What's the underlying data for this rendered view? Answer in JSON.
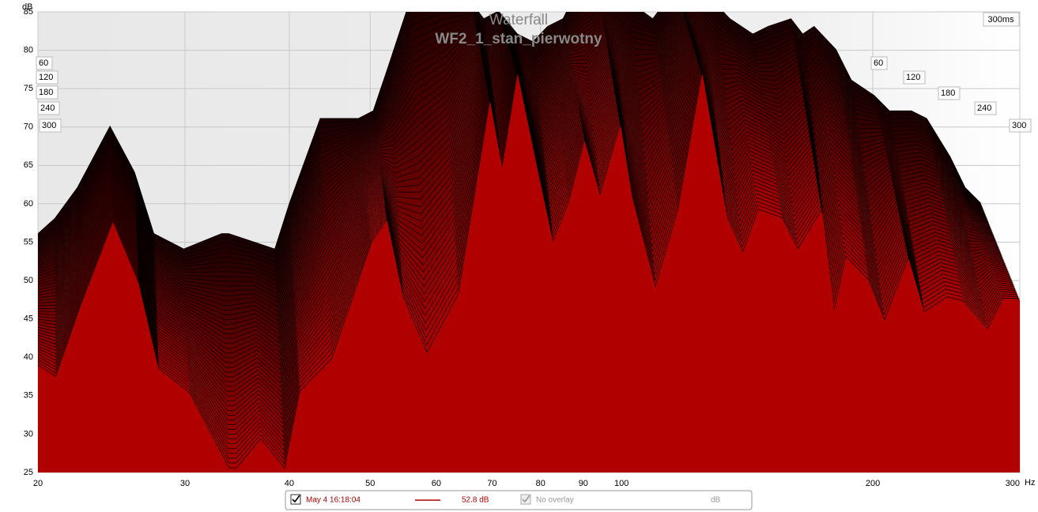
{
  "chart_data": {
    "type": "waterfall",
    "title": "Waterfall",
    "subtitle": "WF2_1_stan_pierwotny",
    "x": [
      20,
      21.0,
      22.4,
      24.6,
      26.4,
      27.9,
      30.4,
      33.9,
      34.6,
      37.0,
      39.5,
      41.2,
      45.0,
      50.2,
      52.4,
      54.8,
      58.5,
      63.8,
      69.6,
      72.0,
      75.1,
      79.3,
      82.9,
      86.5,
      90.4,
      94.4,
      99.8,
      103,
      110,
      117,
      125,
      134,
      140,
      146,
      156,
      163,
      174,
      180,
      186,
      198,
      207,
      221,
      231,
      246,
      257,
      275,
      287,
      300
    ],
    "series": [
      {
        "color": "#1a0000",
        "values": [
          52,
          54,
          58,
          66,
          60,
          52,
          50,
          52,
          52,
          51,
          50,
          56,
          67,
          67,
          68,
          74,
          83,
          84,
          82,
          80,
          81,
          78,
          77,
          79,
          80,
          84,
          84,
          84,
          82,
          80,
          84,
          84,
          82,
          80,
          78,
          79,
          80,
          78,
          79,
          76,
          72,
          70,
          68,
          68,
          67,
          62,
          58,
          56
        ]
      },
      {
        "color": "#b00000",
        "values": [
          38.7,
          37.1,
          45.9,
          57.5,
          49.5,
          38.2,
          35,
          25,
          25,
          28.9,
          25,
          35.1,
          39.2,
          54.6,
          57.7,
          47.4,
          39.7,
          47.4,
          73.2,
          64.4,
          76.8,
          64.4,
          54.6,
          59.7,
          68,
          60.7,
          70,
          60.7,
          48.5,
          58.8,
          76.8,
          57.7,
          53.1,
          58.8,
          57.7,
          53.6,
          58.8,
          45.4,
          52.6,
          49.5,
          44.3,
          52.6,
          45.4,
          47.4,
          46.9,
          43.3,
          47.4,
          47.4
        ]
      }
    ],
    "xlim": [
      20,
      300
    ],
    "xticks": [
      20,
      30,
      40,
      50,
      60,
      70,
      80,
      90,
      100,
      200,
      300
    ],
    "x_unit": "Hz",
    "xlog": true,
    "ylim": [
      25,
      85
    ],
    "yticks": [
      25,
      30,
      35,
      40,
      45,
      50,
      55,
      60,
      65,
      70,
      75,
      80,
      85
    ],
    "y_label": "dB",
    "grid": true,
    "time_label": "300ms",
    "zticks": [
      60,
      120,
      180,
      240,
      300
    ]
  },
  "legend": {
    "date": "May 4 16:18:04",
    "value": "52.8 dB",
    "overlay": "No overlay",
    "unit": "dB"
  }
}
